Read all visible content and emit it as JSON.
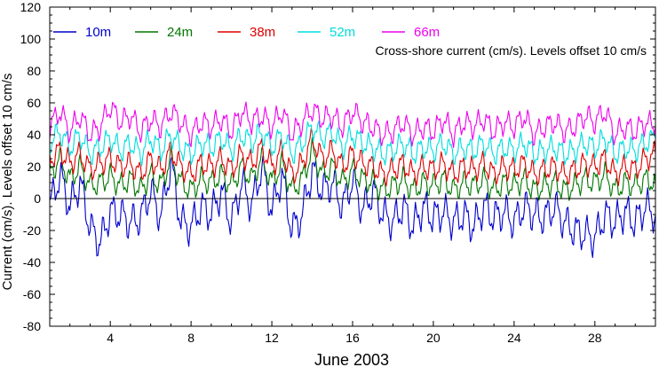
{
  "chart_data": {
    "type": "line",
    "title": "",
    "xlabel": "June 2003",
    "ylabel": "Current (cm/s). Levels offset 10 cm/s",
    "annotation": "Cross-shore current (cm/s). Levels offset 10 cm/s",
    "xlim": [
      1,
      31
    ],
    "ylim": [
      -80,
      120
    ],
    "x_ticks": [
      4,
      8,
      12,
      16,
      20,
      24,
      28
    ],
    "y_ticks": [
      -80,
      -60,
      -40,
      -20,
      0,
      20,
      40,
      60,
      80,
      100,
      120
    ],
    "zero_line": true,
    "grid": false,
    "legend_position": "top",
    "series": [
      {
        "name": "10m",
        "color": "#0000CC",
        "offset": 0,
        "x": [
          1.0,
          1.5,
          2.0,
          2.5,
          3.0,
          3.5,
          4.0,
          4.5,
          5.0,
          5.5,
          6.0,
          6.5,
          7.0,
          7.5,
          8.0,
          8.5,
          9.0,
          9.5,
          10.0,
          10.5,
          11.0,
          11.5,
          12.0,
          12.5,
          13.0,
          13.5,
          14.0,
          14.5,
          15.0,
          15.5,
          16.0,
          16.5,
          17.0,
          17.5,
          18.0,
          18.5,
          19.0,
          19.5,
          20.0,
          20.5,
          21.0,
          21.5,
          22.0,
          22.5,
          23.0,
          23.5,
          24.0,
          24.5,
          25.0,
          25.5,
          26.0,
          26.5,
          27.0,
          27.5,
          28.0,
          28.5,
          29.0,
          29.5,
          30.0,
          30.5,
          31.0
        ],
        "y": [
          -5,
          15,
          -5,
          10,
          -18,
          -28,
          -8,
          -10,
          -15,
          -12,
          5,
          -12,
          22,
          -15,
          -18,
          -5,
          -10,
          5,
          -15,
          10,
          -5,
          20,
          -8,
          15,
          -20,
          -10,
          18,
          5,
          10,
          -5,
          12,
          -8,
          5,
          -10,
          -15,
          -5,
          -18,
          -5,
          -12,
          -8,
          -15,
          -10,
          -18,
          -5,
          -12,
          -8,
          -15,
          -5,
          -10,
          -12,
          -5,
          -15,
          -20,
          -22,
          -25,
          -10,
          -15,
          -8,
          -15,
          -5,
          -10
        ]
      },
      {
        "name": "24m",
        "color": "#007700",
        "offset": 10,
        "x": [
          1.0,
          1.5,
          2.0,
          2.5,
          3.0,
          3.5,
          4.0,
          4.5,
          5.0,
          5.5,
          6.0,
          6.5,
          7.0,
          7.5,
          8.0,
          8.5,
          9.0,
          9.5,
          10.0,
          10.5,
          11.0,
          11.5,
          12.0,
          12.5,
          13.0,
          13.5,
          14.0,
          14.5,
          15.0,
          15.5,
          16.0,
          16.5,
          17.0,
          17.5,
          18.0,
          18.5,
          19.0,
          19.5,
          20.0,
          20.5,
          21.0,
          21.5,
          22.0,
          22.5,
          23.0,
          23.5,
          24.0,
          24.5,
          25.0,
          25.5,
          26.0,
          26.5,
          27.0,
          27.5,
          28.0,
          28.5,
          29.0,
          29.5,
          30.0,
          30.5,
          31.0
        ],
        "y": [
          15,
          25,
          12,
          20,
          8,
          10,
          14,
          8,
          12,
          5,
          15,
          8,
          25,
          10,
          5,
          12,
          10,
          15,
          8,
          20,
          12,
          25,
          10,
          22,
          5,
          12,
          30,
          15,
          20,
          10,
          18,
          12,
          10,
          5,
          8,
          12,
          5,
          10,
          8,
          12,
          5,
          10,
          8,
          12,
          5,
          10,
          8,
          12,
          5,
          8,
          10,
          5,
          8,
          12,
          10,
          15,
          5,
          10,
          8,
          12,
          10
        ]
      },
      {
        "name": "38m",
        "color": "#DD0000",
        "offset": 20,
        "x": [
          1.0,
          1.5,
          2.0,
          2.5,
          3.0,
          3.5,
          4.0,
          4.5,
          5.0,
          5.5,
          6.0,
          6.5,
          7.0,
          7.5,
          8.0,
          8.5,
          9.0,
          9.5,
          10.0,
          10.5,
          11.0,
          11.5,
          12.0,
          12.5,
          13.0,
          13.5,
          14.0,
          14.5,
          15.0,
          15.5,
          16.0,
          16.5,
          17.0,
          17.5,
          18.0,
          18.5,
          19.0,
          19.5,
          20.0,
          20.5,
          21.0,
          21.5,
          22.0,
          22.5,
          23.0,
          23.5,
          24.0,
          24.5,
          25.0,
          25.5,
          26.0,
          26.5,
          27.0,
          27.5,
          28.0,
          28.5,
          29.0,
          29.5,
          30.0,
          30.5,
          31.0
        ],
        "y": [
          25,
          30,
          22,
          28,
          18,
          22,
          25,
          20,
          22,
          15,
          25,
          18,
          30,
          20,
          15,
          22,
          20,
          25,
          18,
          28,
          22,
          32,
          20,
          30,
          15,
          22,
          38,
          25,
          30,
          20,
          28,
          22,
          20,
          15,
          18,
          22,
          15,
          20,
          18,
          22,
          15,
          20,
          18,
          22,
          15,
          20,
          18,
          22,
          15,
          18,
          20,
          15,
          18,
          22,
          20,
          25,
          15,
          20,
          18,
          25,
          28
        ]
      },
      {
        "name": "52m",
        "color": "#00DDDD",
        "offset": 30,
        "x": [
          1.0,
          1.5,
          2.0,
          2.5,
          3.0,
          3.5,
          4.0,
          4.5,
          5.0,
          5.5,
          6.0,
          6.5,
          7.0,
          7.5,
          8.0,
          8.5,
          9.0,
          9.5,
          10.0,
          10.5,
          11.0,
          11.5,
          12.0,
          12.5,
          13.0,
          13.5,
          14.0,
          14.5,
          15.0,
          15.5,
          16.0,
          16.5,
          17.0,
          17.5,
          18.0,
          18.5,
          19.0,
          19.5,
          20.0,
          20.5,
          21.0,
          21.5,
          22.0,
          22.5,
          23.0,
          23.5,
          24.0,
          24.5,
          25.0,
          25.5,
          26.0,
          26.5,
          27.0,
          27.5,
          28.0,
          28.5,
          29.0,
          29.5,
          30.0,
          30.5,
          31.0
        ],
        "y": [
          35,
          42,
          32,
          40,
          28,
          32,
          38,
          30,
          35,
          28,
          38,
          30,
          40,
          32,
          28,
          35,
          32,
          38,
          30,
          40,
          35,
          42,
          32,
          40,
          28,
          35,
          45,
          38,
          42,
          32,
          40,
          35,
          32,
          28,
          30,
          35,
          28,
          32,
          30,
          35,
          28,
          32,
          30,
          35,
          28,
          32,
          30,
          35,
          28,
          30,
          32,
          28,
          30,
          35,
          32,
          38,
          28,
          32,
          30,
          35,
          38
        ]
      },
      {
        "name": "66m",
        "color": "#EE00EE",
        "offset": 40,
        "x": [
          1.0,
          1.5,
          2.0,
          2.5,
          3.0,
          3.5,
          4.0,
          4.5,
          5.0,
          5.5,
          6.0,
          6.5,
          7.0,
          7.5,
          8.0,
          8.5,
          9.0,
          9.5,
          10.0,
          10.5,
          11.0,
          11.5,
          12.0,
          12.5,
          13.0,
          13.5,
          14.0,
          14.5,
          15.0,
          15.5,
          16.0,
          16.5,
          17.0,
          17.5,
          18.0,
          18.5,
          19.0,
          19.5,
          20.0,
          20.5,
          21.0,
          21.5,
          22.0,
          22.5,
          23.0,
          23.5,
          24.0,
          24.5,
          25.0,
          25.5,
          26.0,
          26.5,
          27.0,
          27.5,
          28.0,
          28.5,
          29.0,
          29.5,
          30.0,
          30.5,
          31.0
        ],
        "y": [
          45,
          55,
          42,
          52,
          40,
          45,
          58,
          48,
          52,
          42,
          50,
          45,
          55,
          48,
          40,
          48,
          45,
          50,
          42,
          55,
          48,
          52,
          45,
          55,
          40,
          48,
          56,
          50,
          52,
          45,
          55,
          48,
          45,
          40,
          42,
          48,
          40,
          45,
          42,
          50,
          40,
          48,
          45,
          50,
          42,
          48,
          45,
          52,
          40,
          45,
          48,
          42,
          45,
          52,
          48,
          55,
          40,
          45,
          42,
          48,
          45
        ]
      }
    ]
  }
}
